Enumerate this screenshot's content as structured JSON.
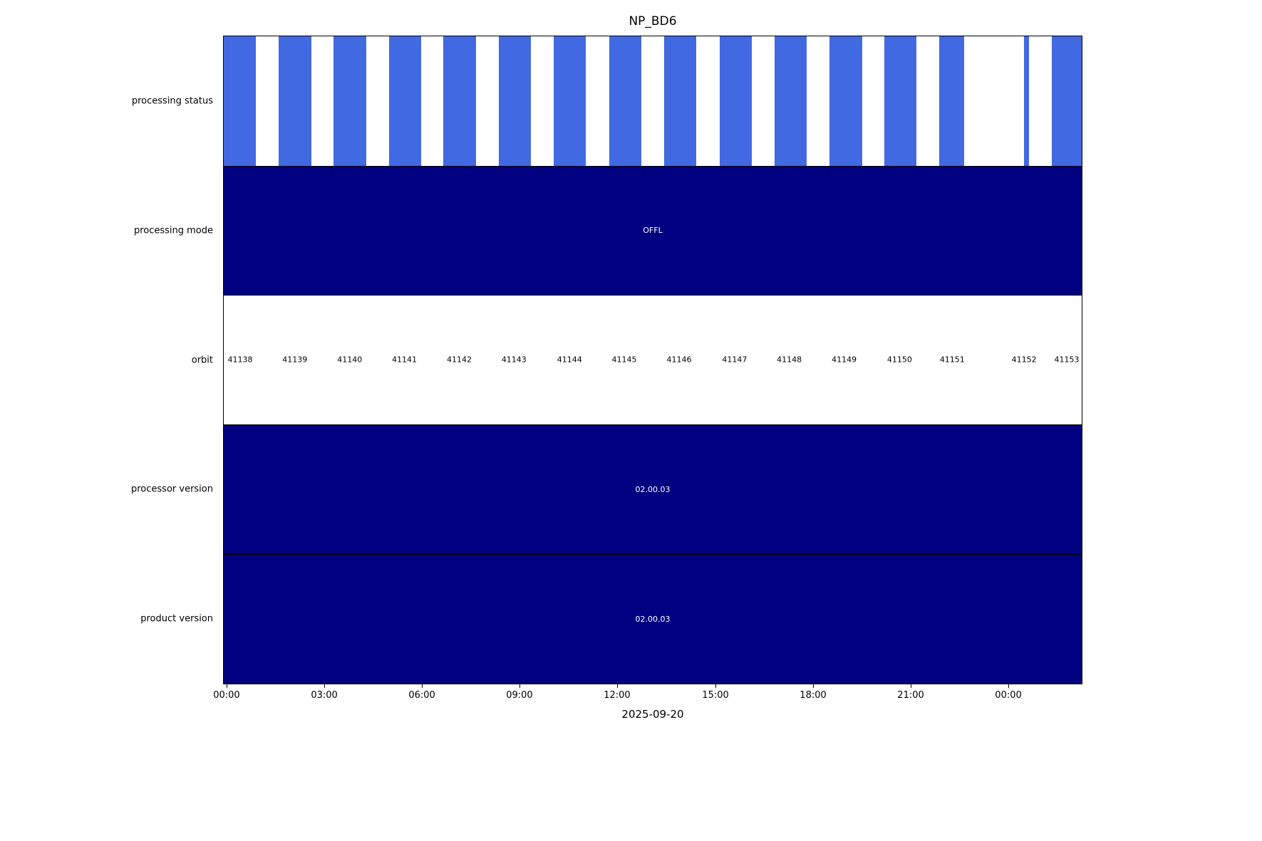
{
  "colors": {
    "status_blue": "#4169E1",
    "navy": "#000080",
    "text_on_navy": "#ffffff",
    "text": "#000000"
  },
  "chart_data": {
    "type": "timeline",
    "title": "NP_BD6",
    "xlabel": "2025-09-20",
    "legend_position": "none",
    "grid": false,
    "x_ticks": [
      {
        "label": "00:00",
        "pos": 0.41
      },
      {
        "label": "03:00",
        "pos": 11.78
      },
      {
        "label": "06:00",
        "pos": 23.14
      },
      {
        "label": "09:00",
        "pos": 34.49
      },
      {
        "label": "12:00",
        "pos": 45.85
      },
      {
        "label": "15:00",
        "pos": 57.3
      },
      {
        "label": "18:00",
        "pos": 68.66
      },
      {
        "label": "21:00",
        "pos": 80.02
      },
      {
        "label": "00:00",
        "pos": 91.38
      }
    ],
    "rows": [
      {
        "label": "processing status",
        "type": "bars",
        "bars": [
          [
            0.0,
            3.73
          ],
          [
            6.38,
            10.2
          ],
          [
            12.77,
            16.58
          ],
          [
            19.24,
            22.97
          ],
          [
            25.62,
            29.44
          ],
          [
            32.09,
            35.82
          ],
          [
            38.47,
            42.21
          ],
          [
            44.94,
            48.67
          ],
          [
            51.33,
            55.06
          ],
          [
            57.79,
            61.53
          ],
          [
            64.18,
            67.91
          ],
          [
            70.56,
            74.38
          ],
          [
            77.03,
            80.76
          ],
          [
            83.42,
            86.32
          ],
          [
            93.28,
            93.86
          ],
          [
            96.52,
            100.0
          ]
        ]
      },
      {
        "label": "processing mode",
        "type": "solid",
        "text": "OFFL"
      },
      {
        "label": "orbit",
        "type": "labels",
        "items": [
          {
            "label": "41138",
            "pos": 1.91
          },
          {
            "label": "41139",
            "pos": 8.29
          },
          {
            "label": "41140",
            "pos": 14.68
          },
          {
            "label": "41141",
            "pos": 21.06
          },
          {
            "label": "41142",
            "pos": 27.45
          },
          {
            "label": "41143",
            "pos": 33.83
          },
          {
            "label": "41144",
            "pos": 40.3
          },
          {
            "label": "41145",
            "pos": 46.68
          },
          {
            "label": "41146",
            "pos": 53.07
          },
          {
            "label": "41147",
            "pos": 59.54
          },
          {
            "label": "41148",
            "pos": 65.92
          },
          {
            "label": "41149",
            "pos": 72.31
          },
          {
            "label": "41150",
            "pos": 78.77
          },
          {
            "label": "41151",
            "pos": 84.91
          },
          {
            "label": "41152",
            "pos": 93.28
          },
          {
            "label": "41153",
            "pos": 98.26
          }
        ]
      },
      {
        "label": "processor version",
        "type": "solid",
        "text": "02.00.03"
      },
      {
        "label": "product version",
        "type": "solid",
        "text": "02.00.03"
      }
    ]
  }
}
